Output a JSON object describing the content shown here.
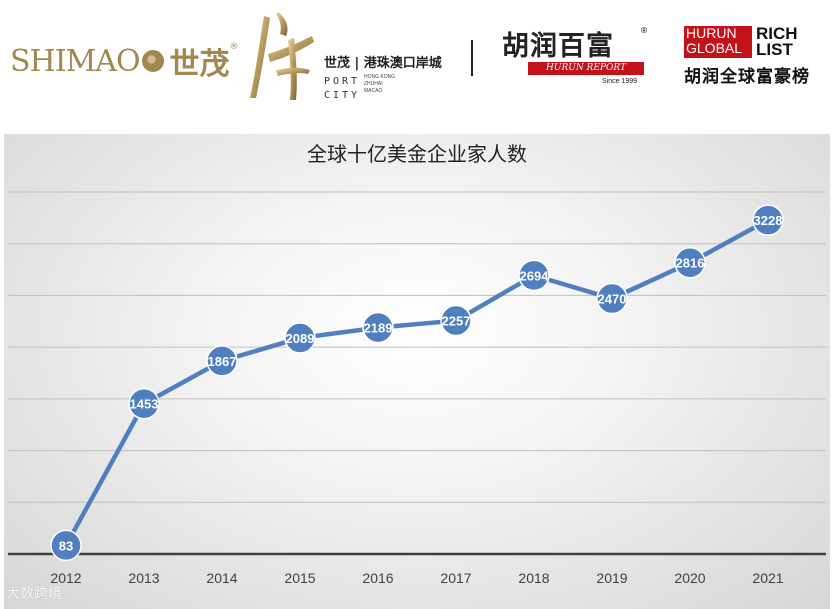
{
  "header": {
    "shimao": {
      "en": "SHIMAO",
      "cn": "世茂",
      "reg": "®"
    },
    "port_city": {
      "cn": "世茂 | 港珠澳口岸城",
      "en_line1": "PORT",
      "en_line2": "CITY",
      "small_1": "HONG KONG",
      "small_2": "ZHUHAI",
      "small_3": "MACAO"
    },
    "hurun": {
      "cn": "胡润百富",
      "reg": "®",
      "band": "HURUN REPORT",
      "since": "Since 1999"
    },
    "rich_list": {
      "box_1": "HURUN",
      "box_2": "GLOBAL",
      "right_1": "RICH",
      "right_2": "LIST",
      "cn": "胡润全球富豪榜"
    }
  },
  "watermark": "大数跨境",
  "colors": {
    "line": "#4f7fbf",
    "marker": "#4f7fbf",
    "label_text": "#ffffff",
    "axis": "#404040",
    "grid": "#bfbfbf",
    "title": "#222222"
  },
  "chart_data": {
    "type": "line",
    "title": "全球十亿美金企业家人数",
    "xlabel": "",
    "ylabel": "",
    "categories": [
      "2012",
      "2013",
      "2014",
      "2015",
      "2016",
      "2017",
      "2018",
      "2019",
      "2020",
      "2021"
    ],
    "values": [
      83,
      1453,
      1867,
      2089,
      2189,
      2257,
      2694,
      2470,
      2816,
      3228
    ],
    "ylim": [
      0,
      3500
    ],
    "gridlines": [
      0,
      500,
      1000,
      1500,
      2000,
      2500,
      3000,
      3500
    ],
    "grid": true,
    "legend": "none",
    "data_labels": true
  }
}
